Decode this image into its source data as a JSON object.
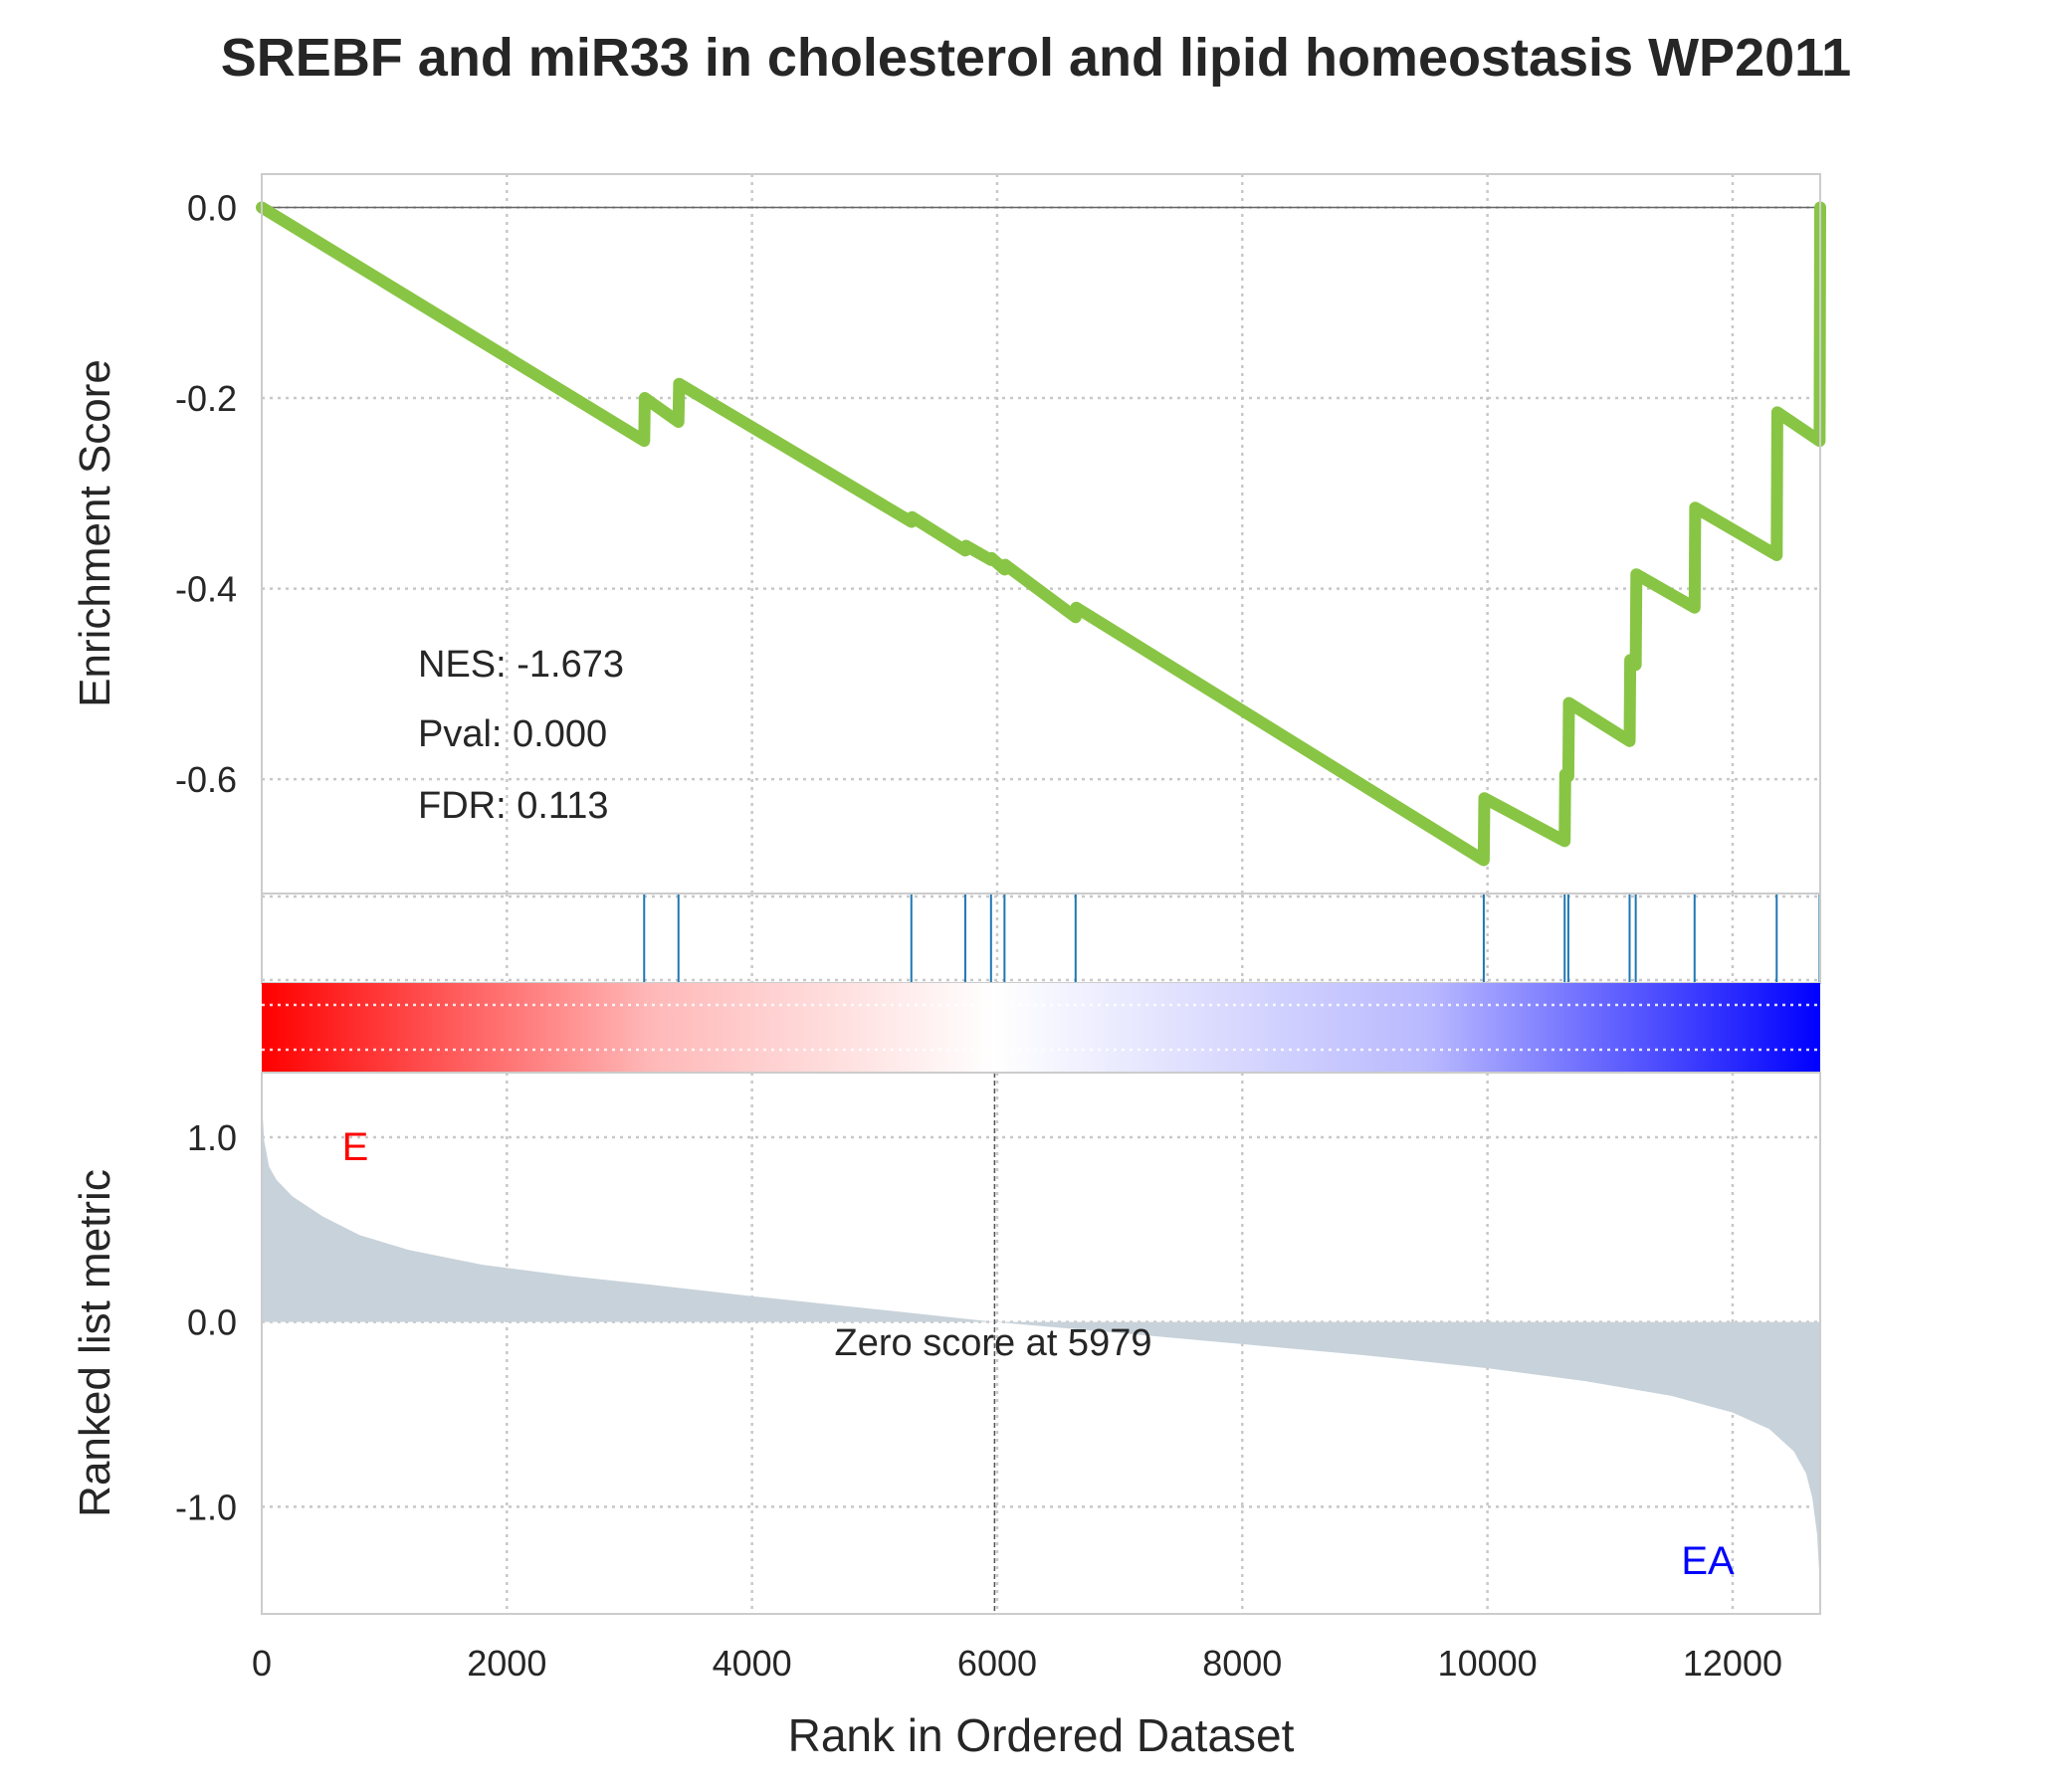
{
  "chart_data": {
    "type": "line",
    "title": "SREBF and miR33 in cholesterol and lipid homeostasis WP2011",
    "colors": {
      "es_line": "#88c544",
      "hits": "#1f77b4",
      "metric_fill": "#c8d2da",
      "pos_label": "#ff0000",
      "neg_label": "#0000ff",
      "grid": "#c8c8c8",
      "frame": "#cccccc",
      "text": "#262626"
    },
    "enrichment": {
      "ylabel": "Enrichment Score",
      "ylim": [
        -0.72,
        0.035
      ],
      "yticks": [
        0.0,
        -0.2,
        -0.4,
        -0.6
      ],
      "ytick_labels": [
        "0.0",
        "-0.2",
        "-0.4",
        "-0.6"
      ],
      "grid": true,
      "points": [
        [
          0,
          0.0
        ],
        [
          3120,
          -0.245
        ],
        [
          3125,
          -0.2
        ],
        [
          3400,
          -0.225
        ],
        [
          3405,
          -0.185
        ],
        [
          5300,
          -0.33
        ],
        [
          5305,
          -0.325
        ],
        [
          5740,
          -0.36
        ],
        [
          5745,
          -0.355
        ],
        [
          5950,
          -0.37
        ],
        [
          5955,
          -0.368
        ],
        [
          6060,
          -0.38
        ],
        [
          6065,
          -0.375
        ],
        [
          6640,
          -0.43
        ],
        [
          6645,
          -0.42
        ],
        [
          9970,
          -0.685
        ],
        [
          9975,
          -0.62
        ],
        [
          10630,
          -0.665
        ],
        [
          10635,
          -0.595
        ],
        [
          10660,
          -0.597
        ],
        [
          10665,
          -0.52
        ],
        [
          11160,
          -0.56
        ],
        [
          11165,
          -0.475
        ],
        [
          11210,
          -0.48
        ],
        [
          11215,
          -0.385
        ],
        [
          11690,
          -0.42
        ],
        [
          11695,
          -0.315
        ],
        [
          12360,
          -0.365
        ],
        [
          12365,
          -0.215
        ],
        [
          12710,
          -0.245
        ],
        [
          12715,
          0.0
        ]
      ],
      "stats": [
        "NES: -1.673",
        "Pval: 0.000",
        "FDR: 0.113"
      ]
    },
    "hits": [
      3120,
      3400,
      5300,
      5740,
      5950,
      6060,
      6640,
      9970,
      10630,
      10660,
      11160,
      11210,
      11690,
      12360,
      12710
    ],
    "metric": {
      "ylabel": "Ranked list metric",
      "ylim": [
        -1.58,
        1.35
      ],
      "yticks": [
        1.0,
        0.0,
        -1.0
      ],
      "ytick_labels": [
        "1.0",
        "0.0",
        "-1.0"
      ],
      "curve": [
        [
          0,
          1.2
        ],
        [
          20,
          0.98
        ],
        [
          60,
          0.84
        ],
        [
          120,
          0.77
        ],
        [
          250,
          0.68
        ],
        [
          500,
          0.57
        ],
        [
          800,
          0.47
        ],
        [
          1200,
          0.39
        ],
        [
          1800,
          0.31
        ],
        [
          2500,
          0.25
        ],
        [
          3200,
          0.2
        ],
        [
          4000,
          0.14
        ],
        [
          5000,
          0.07
        ],
        [
          5979,
          0.0
        ],
        [
          7000,
          -0.06
        ],
        [
          8000,
          -0.12
        ],
        [
          9000,
          -0.18
        ],
        [
          10000,
          -0.25
        ],
        [
          10800,
          -0.32
        ],
        [
          11500,
          -0.4
        ],
        [
          12000,
          -0.49
        ],
        [
          12300,
          -0.58
        ],
        [
          12500,
          -0.7
        ],
        [
          12600,
          -0.82
        ],
        [
          12650,
          -0.95
        ],
        [
          12690,
          -1.15
        ],
        [
          12715,
          -1.45
        ]
      ],
      "zero_rank": 5979,
      "zero_label": "Zero score at 5979",
      "pos_label": "E",
      "neg_label": "EA"
    },
    "x": {
      "label": "Rank in Ordered Dataset",
      "lim": [
        0,
        12715
      ],
      "ticks": [
        0,
        2000,
        4000,
        6000,
        8000,
        10000,
        12000
      ],
      "tick_labels": [
        "0",
        "2000",
        "4000",
        "6000",
        "8000",
        "10000",
        "12000"
      ]
    }
  }
}
